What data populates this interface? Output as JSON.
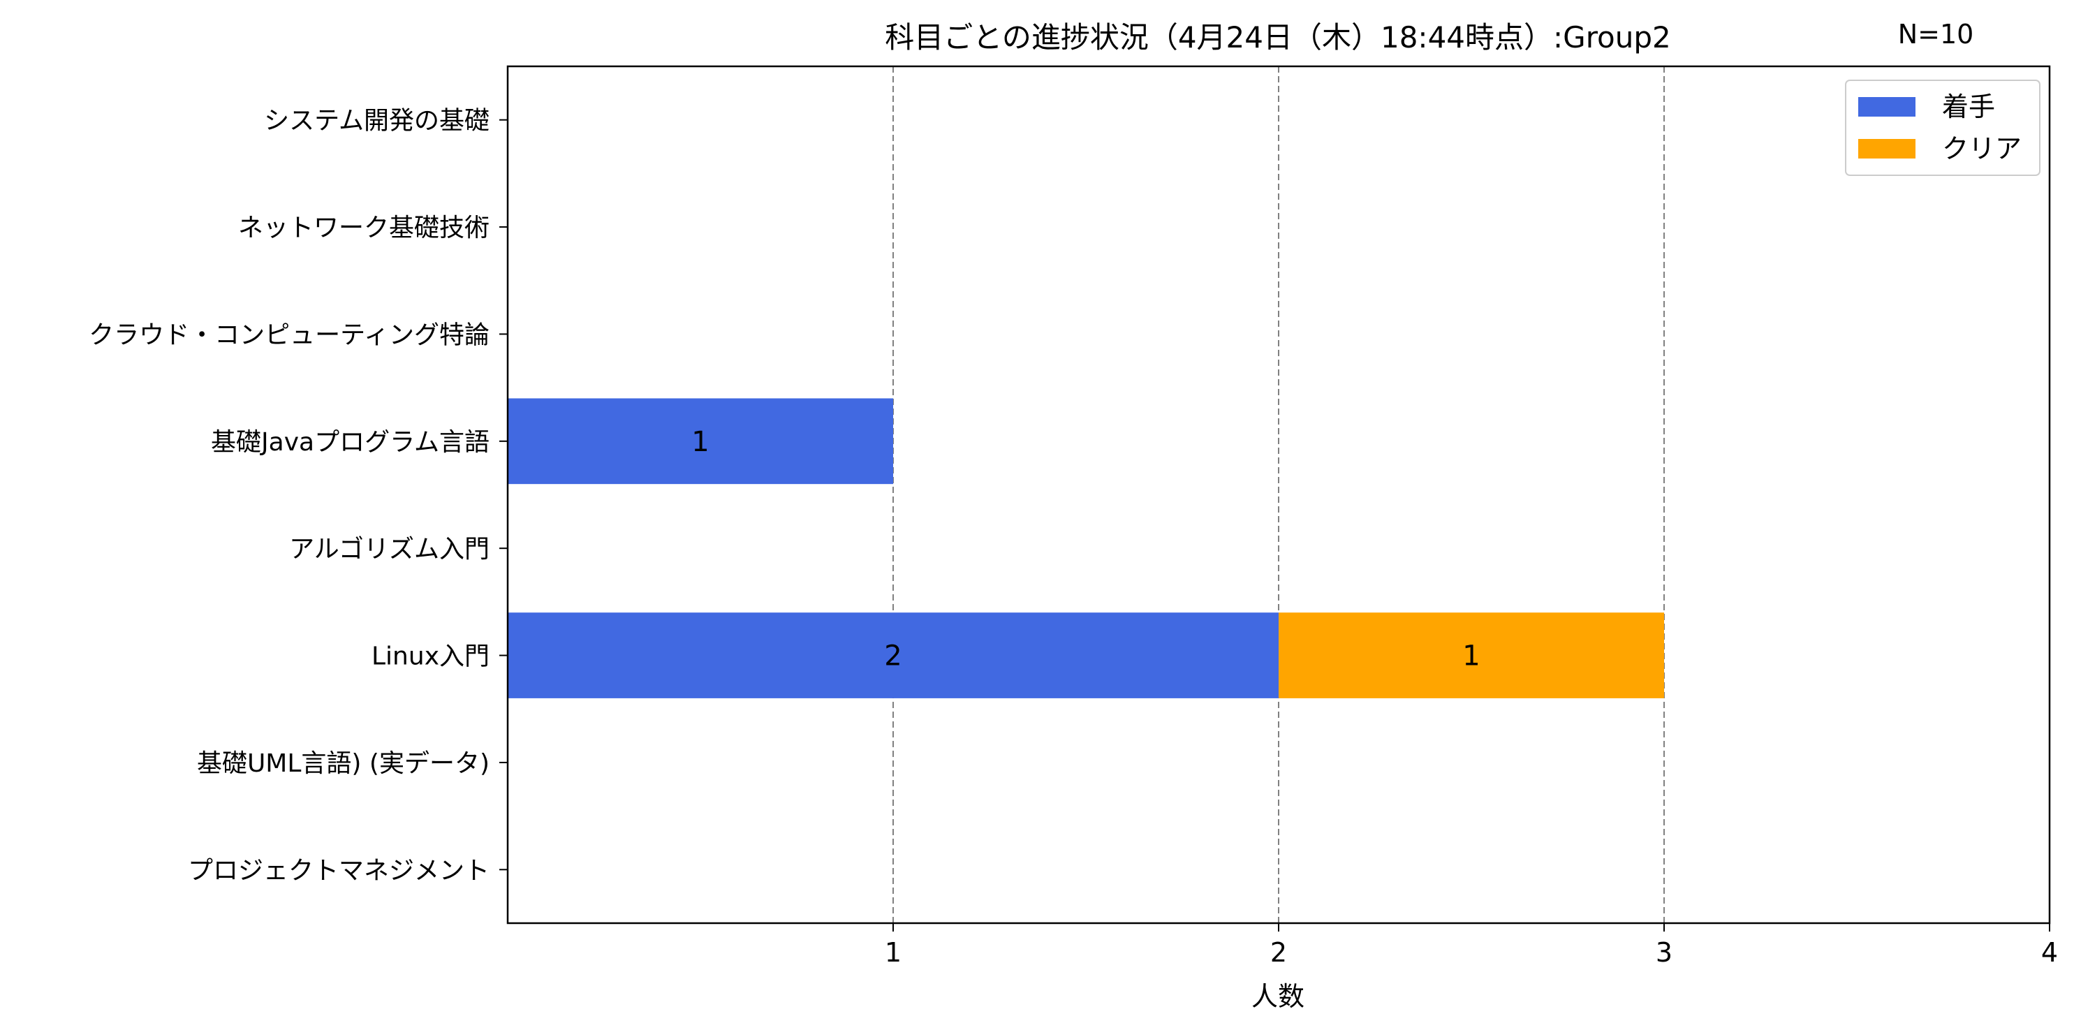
{
  "chart_data": {
    "type": "bar",
    "orientation": "horizontal",
    "stacked": true,
    "title": "科目ごとの進捗状況（4月24日（木）18:44時点）:Group2",
    "annotation": "N=10",
    "xlabel": "人数",
    "ylabel": "",
    "xlim": [
      0,
      4
    ],
    "xticks": [
      1,
      2,
      3,
      4
    ],
    "grid": "vertical dashed gray at x ticks",
    "legend_position": "top-right",
    "categories": [
      "システム開発の基礎",
      "ネットワーク基礎技術",
      "クラウド・コンピューティング特論",
      "基礎Javaプログラム言語",
      "アルゴリズム入門",
      "Linux入門",
      "基礎UML言語) (実データ)",
      "プロジェクトマネジメント"
    ],
    "series": [
      {
        "name": "着手",
        "color": "#4169E1",
        "values": [
          0,
          0,
          0,
          1,
          0,
          2,
          0,
          0
        ]
      },
      {
        "name": "クリア",
        "color": "#FFA500",
        "values": [
          0,
          0,
          0,
          0,
          0,
          1,
          0,
          0
        ]
      }
    ]
  }
}
